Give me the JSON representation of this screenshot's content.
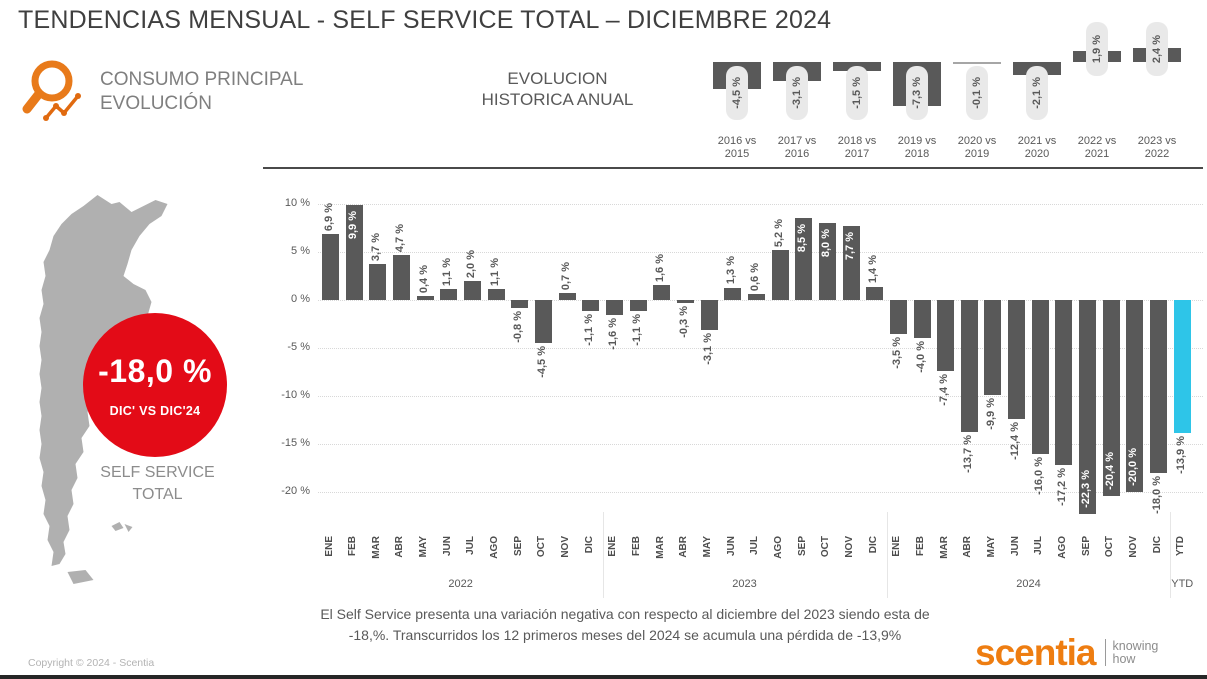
{
  "title": "TENDENCIAS MENSUAL - SELF SERVICE TOTAL –  DICIEMBRE 2024",
  "header": {
    "section_title_line1": "CONSUMO PRINCIPAL",
    "section_title_line2": "EVOLUCIÓN",
    "annual_title_line1": "EVOLUCION",
    "annual_title_line2": "HISTORICA ANUAL"
  },
  "kpi": {
    "value": "-18,0 %",
    "caption": "DIC' VS DIC'24",
    "label_line1": "SELF SERVICE",
    "label_line2": "TOTAL",
    "circle_color": "#e30b17"
  },
  "chart_data": [
    {
      "name": "annual_evolution",
      "type": "bar",
      "title": "EVOLUCION HISTORICA ANUAL",
      "categories": [
        "2016 vs 2015",
        "2017 vs 2016",
        "2018 vs 2017",
        "2019 vs 2018",
        "2020 vs 2019",
        "2021 vs 2020",
        "2022 vs 2021",
        "2023 vs 2022"
      ],
      "values": [
        -4.5,
        -3.1,
        -1.5,
        -7.3,
        -0.1,
        -2.1,
        1.9,
        2.4
      ],
      "labels": [
        "-4,5 %",
        "-3,1 %",
        "-1,5 %",
        "-7,3 %",
        "-0,1 %",
        "-2,1 %",
        "1,9 %",
        "2,4 %"
      ],
      "bar_color": "#595959",
      "label_pill_color": "#e9e9e9",
      "legend": "none",
      "grid": "off"
    },
    {
      "name": "monthly_trend",
      "type": "bar",
      "title": "TENDENCIAS MENSUAL - SELF SERVICE TOTAL - DICIEMBRE 2024",
      "categories": [
        "ENE",
        "FEB",
        "MAR",
        "ABR",
        "MAY",
        "JUN",
        "JUL",
        "AGO",
        "SEP",
        "OCT",
        "NOV",
        "DIC",
        "ENE",
        "FEB",
        "MAR",
        "ABR",
        "MAY",
        "JUN",
        "JUL",
        "AGO",
        "SEP",
        "OCT",
        "NOV",
        "DIC",
        "ENE",
        "FEB",
        "MAR",
        "ABR",
        "MAY",
        "JUN",
        "JUL",
        "AGO",
        "SEP",
        "OCT",
        "NOV",
        "DIC",
        "YTD"
      ],
      "groups": [
        {
          "label": "2022",
          "span": 12
        },
        {
          "label": "2023",
          "span": 12
        },
        {
          "label": "2024",
          "span": 12
        },
        {
          "label": "YTD",
          "span": 1
        }
      ],
      "values": [
        6.9,
        9.9,
        3.7,
        4.7,
        0.4,
        1.1,
        2.0,
        1.1,
        -0.8,
        -4.5,
        0.7,
        -1.1,
        -1.6,
        -1.1,
        1.6,
        -0.3,
        -3.1,
        1.3,
        0.6,
        5.2,
        8.5,
        8.0,
        7.7,
        1.4,
        -3.5,
        -4.0,
        -7.4,
        -13.7,
        -9.9,
        -12.4,
        -16.0,
        -17.2,
        -22.3,
        -20.4,
        -20.0,
        -18.0,
        -13.9
      ],
      "labels": [
        "6,9 %",
        "9,9 %",
        "3,7 %",
        "4,7 %",
        "0,4 %",
        "1,1 %",
        "2,0 %",
        "1,1 %",
        "-0,8 %",
        "-4,5 %",
        "0,7 %",
        "-1,1 %",
        "-1,6 %",
        "-1,1 %",
        "1,6 %",
        "-0,3 %",
        "-3,1 %",
        "1,3 %",
        "0,6 %",
        "5,2 %",
        "8,5 %",
        "8,0 %",
        "7,7 %",
        "1,4 %",
        "-3,5 %",
        "-4,0 %",
        "-7,4 %",
        "-13,7 %",
        "-9,9 %",
        "-12,4 %",
        "-16,0 %",
        "-17,2 %",
        "-22,3 %",
        "-20,4 %",
        "-20,0 %",
        "-18,0 %",
        "-13,9 %"
      ],
      "yticks": [
        {
          "value": 10,
          "label": "10 %"
        },
        {
          "value": 5,
          "label": "5 %"
        },
        {
          "value": 0,
          "label": "0 %"
        },
        {
          "value": -5,
          "label": "-5 %"
        },
        {
          "value": -10,
          "label": "-10 %"
        },
        {
          "value": -15,
          "label": "-15 %"
        },
        {
          "value": -20,
          "label": "-20 %"
        }
      ],
      "ylim": [
        -25,
        12
      ],
      "grid": "dotted-horizontal",
      "legend": "none",
      "bar_color": "#595959",
      "highlight_color": "#2ec5e8",
      "highlight_index": 36,
      "inside_label_indices": [
        1,
        20,
        21,
        22,
        32,
        33,
        34
      ]
    }
  ],
  "summary": {
    "line1": "El Self Service presenta una variación negativa con respecto al diciembre del 2023 siendo esta de",
    "line2": "-18,%. Transcurridos los 12 primeros meses del 2024 se acumula una pérdida de -13,9%"
  },
  "footer": {
    "copyright": "Copyright © 2024 - Scentia",
    "logo_text": "scentia",
    "logo_tagline_line1": "knowing",
    "logo_tagline_line2": "how",
    "logo_color": "#ee7d11"
  },
  "map": {
    "region": "Argentina",
    "color": "#b0b0b0"
  }
}
